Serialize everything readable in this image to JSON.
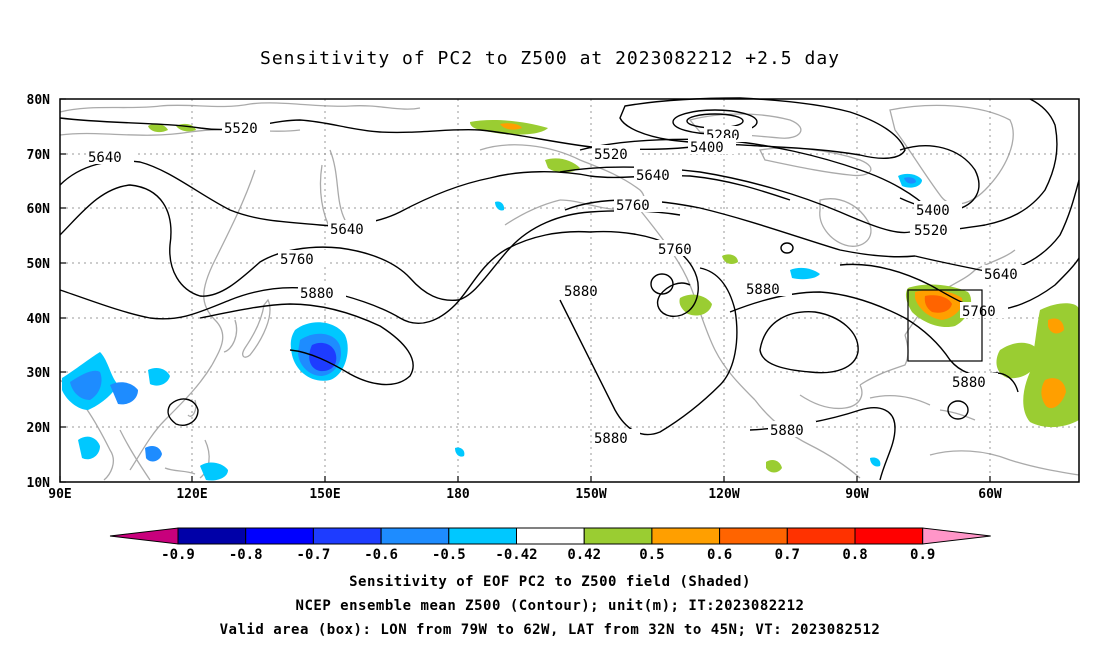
{
  "title": "Sensitivity of PC2 to Z500 at 2023082212 +2.5 day",
  "lat_labels": [
    "80N",
    "70N",
    "60N",
    "50N",
    "40N",
    "30N",
    "20N",
    "10N"
  ],
  "lon_labels": [
    "90E",
    "120E",
    "150E",
    "180",
    "150W",
    "120W",
    "90W",
    "60W"
  ],
  "contour_labels": {
    "c5520_nw": "5520",
    "c5640_nw": "5640",
    "c5280": "5280",
    "c5400_n": "5400",
    "c5520_n": "5520",
    "c5640_n": "5640",
    "c5760_n": "5760",
    "c5640_w": "5640",
    "c5760_w": "5760",
    "c5880_w": "5880",
    "c5880_c": "5880",
    "c5760_c": "5760",
    "c5880_e": "5880",
    "c5400_e": "5400",
    "c5520_e": "5520",
    "c5640_e": "5640",
    "c5760_e": "5760",
    "c5880_se": "5880",
    "c5880_s": "5880",
    "c5880_sc": "5880"
  },
  "colorbar": {
    "labels": [
      "-0.9",
      "-0.8",
      "-0.7",
      "-0.6",
      "-0.5",
      "-0.42",
      "0.42",
      "0.5",
      "0.6",
      "0.7",
      "0.8",
      "0.9"
    ],
    "colors": [
      "#0000a8",
      "#0000ff",
      "#1e3cff",
      "#1e8cff",
      "#00c8ff",
      "#ffffff",
      "#9acd32",
      "#ff9f00",
      "#ff6400",
      "#ff3200",
      "#ff0000"
    ],
    "under_color": "#c8007c",
    "over_color": "#ff96c8"
  },
  "captions": {
    "line1": "Sensitivity of EOF PC2 to Z500 field (Shaded)",
    "line2": "NCEP ensemble mean Z500 (Contour); unit(m); IT:2023082212",
    "line3": "Valid area (box): LON from 79W to 62W, LAT from 32N to 45N; VT: 2023082512"
  }
}
